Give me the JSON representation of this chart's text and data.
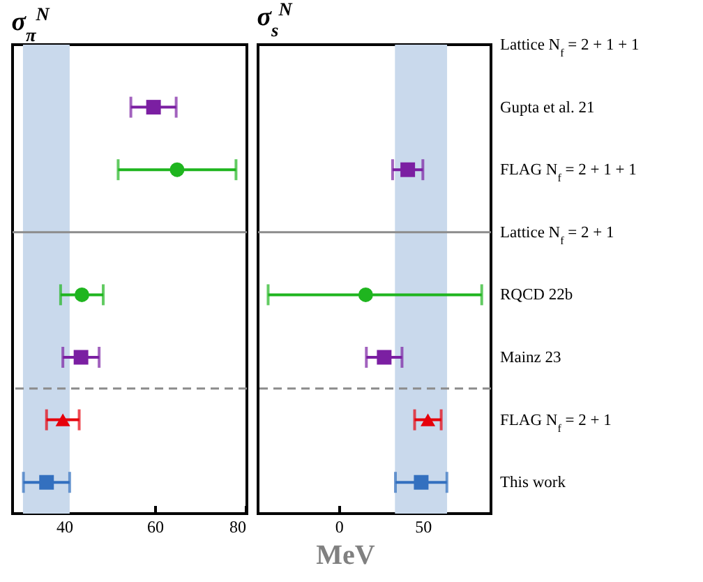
{
  "chart_data": [
    {
      "type": "scatter",
      "title": "σ$_{π}$$^{N}$",
      "xlabel": "MeV",
      "orientation": "horizontal",
      "tick_labels": "x",
      "categories": [
        "Lattice N$_{f}$ = 2 + 1 + 1",
        "Gupta et al. 21",
        "FLAG N$_{f}$ = 2 + 1 + 1",
        "Lattice N$_{f}$ = 2 + 1",
        "RQCD 22b",
        "Mainz 23",
        "FLAG N$_{f}$ = 2 + 1",
        "This work"
      ],
      "xlim": [
        28.6,
        80.3
      ],
      "xticks": [
        40,
        60,
        80
      ],
      "grid": false,
      "series": [
        {
          "color": "#7b1fa2",
          "marker": "square",
          "values": [
            null,
            59.7,
            null,
            null,
            null,
            43.7,
            null,
            null
          ],
          "errors": [
            null,
            5,
            null,
            null,
            null,
            4,
            null,
            null
          ]
        },
        {
          "color": "#1fb51f",
          "marker": "circle",
          "values": [
            null,
            null,
            64.9,
            null,
            43.9,
            null,
            null,
            null
          ],
          "errors": [
            null,
            null,
            13,
            null,
            4.7,
            null,
            null,
            null
          ]
        },
        {
          "color": "#e6000b",
          "marker": "triangle",
          "values": [
            null,
            null,
            null,
            null,
            null,
            null,
            39.7,
            null
          ],
          "errors": [
            null,
            null,
            null,
            null,
            null,
            null,
            3.6,
            null
          ]
        },
        {
          "color": "#3370bf",
          "marker": "square",
          "values": [
            null,
            null,
            null,
            null,
            null,
            null,
            null,
            36.1
          ],
          "errors": [
            null,
            null,
            null,
            null,
            null,
            null,
            null,
            5.1
          ]
        }
      ],
      "bands": [
        {
          "axis": "x",
          "from": 30.9,
          "to": 41.2,
          "color": "#c9d9ec"
        }
      ],
      "ref_lines": [
        {
          "axis": "y",
          "value": "Lattice N$_{f}$ = 2 + 1",
          "color": "#8c8c8c",
          "line_style": "solid"
        },
        {
          "axis": "y",
          "value": "FLAG N$_{f}$ = 2 + 1",
          "color": "#8c8c8c",
          "line_style": "dashed"
        }
      ]
    },
    {
      "type": "scatter",
      "title": "σ$_{s}$$^{N}$",
      "orientation": "horizontal",
      "categories": [
        "Lattice N$_{f}$ = 2 + 1 + 1",
        "Gupta et al. 21",
        "FLAG N$_{f}$ = 2 + 1 + 1",
        "Lattice N$_{f}$ = 2 + 1",
        "RQCD 22b",
        "Mainz 23",
        "FLAG N$_{f}$ = 2 + 1",
        "This work"
      ],
      "xlim": [
        -48,
        90.5
      ],
      "xticks": [
        0,
        50
      ],
      "grid": false,
      "series": [
        {
          "color": "#7b1fa2",
          "marker": "square",
          "values": [
            null,
            null,
            41,
            null,
            null,
            27,
            null,
            null
          ],
          "errors": [
            null,
            null,
            9,
            null,
            null,
            10.6,
            null,
            null
          ]
        },
        {
          "color": "#1fb51f",
          "marker": "circle",
          "values": [
            null,
            null,
            null,
            null,
            16,
            null,
            null,
            null
          ],
          "errors": [
            null,
            null,
            null,
            null,
            [
              -42,
              85
            ],
            null,
            null,
            null
          ]
        },
        {
          "color": "#e6000b",
          "marker": "triangle",
          "values": [
            null,
            null,
            null,
            null,
            null,
            null,
            53,
            null
          ],
          "errors": [
            null,
            null,
            null,
            null,
            null,
            null,
            7.9,
            null
          ]
        },
        {
          "color": "#3370bf",
          "marker": "square",
          "values": [
            null,
            null,
            null,
            null,
            null,
            null,
            null,
            49
          ],
          "errors": [
            null,
            null,
            null,
            null,
            null,
            null,
            null,
            15.3
          ]
        }
      ],
      "bands": [
        {
          "axis": "x",
          "from": 33.4,
          "to": 64.4,
          "color": "#c9d9ec"
        }
      ],
      "ref_lines": [
        {
          "axis": "y",
          "value": "Lattice N$_{f}$ = 2 + 1",
          "color": "#8c8c8c",
          "line_style": "solid"
        },
        {
          "axis": "y",
          "value": "FLAG N$_{f}$ = 2 + 1",
          "color": "#8c8c8c",
          "line_style": "dashed"
        }
      ]
    }
  ]
}
